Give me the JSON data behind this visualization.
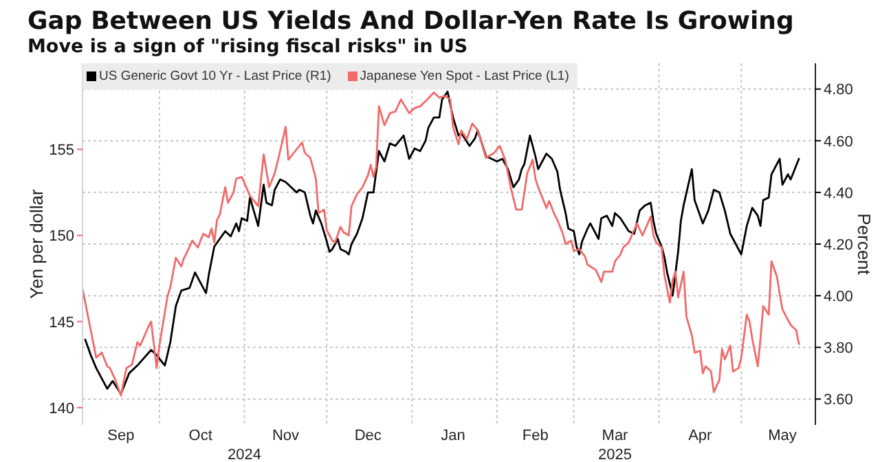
{
  "chart_data": {
    "type": "line",
    "title": "Gap Between US Yields And Dollar-Yen Rate Is Growing",
    "subtitle": "Move is a sign of \"rising fiscal risks\" in US",
    "ylabel": "Yen per dollar",
    "y2label": "Percent",
    "xlim": [
      "2024-09-03",
      "2025-05-28"
    ],
    "xticks": [
      {
        "value": "2024-09-17",
        "label": "Sep"
      },
      {
        "value": "2024-10-01",
        "label": null
      },
      {
        "value": "2024-10-16",
        "label": "Oct"
      },
      {
        "value": "2024-11-01",
        "label": null
      },
      {
        "value": "2024-11-16",
        "label": "Nov"
      },
      {
        "value": "2024-12-01",
        "label": null
      },
      {
        "value": "2024-12-16",
        "label": "Dec"
      },
      {
        "value": "2025-01-01",
        "label": null
      },
      {
        "value": "2025-01-16",
        "label": "Jan"
      },
      {
        "value": "2025-02-01",
        "label": null
      },
      {
        "value": "2025-02-15",
        "label": "Feb"
      },
      {
        "value": "2025-03-01",
        "label": null
      },
      {
        "value": "2025-03-16",
        "label": "Mar"
      },
      {
        "value": "2025-04-01",
        "label": null
      },
      {
        "value": "2025-04-16",
        "label": "Apr"
      },
      {
        "value": "2025-05-01",
        "label": null
      },
      {
        "value": "2025-05-16",
        "label": "May"
      }
    ],
    "x2lim": [
      "2024-09-03",
      "2025-05-28"
    ],
    "x2ticks": [
      {
        "value": "2024-11-01",
        "label": "2024"
      },
      {
        "value": "2025-03-16",
        "label": "2025"
      }
    ],
    "ylim": [
      139,
      160
    ],
    "yticks": [
      140,
      145,
      150,
      155
    ],
    "y2lim": [
      3.5,
      4.9
    ],
    "y2ticks": [
      {
        "value": 3.6,
        "label": "3.60"
      },
      {
        "value": 3.8,
        "label": "3.80"
      },
      {
        "value": 4.0,
        "label": "4.00"
      },
      {
        "value": 4.2,
        "label": "4.20"
      },
      {
        "value": 4.4,
        "label": "4.40"
      },
      {
        "value": 4.6,
        "label": "4.60"
      },
      {
        "value": 4.8,
        "label": "4.80"
      }
    ],
    "grid": true,
    "legend": "top left",
    "series": [
      {
        "name": "US Generic Govt 10 Yr - Last Price (R1)",
        "color": "#000000",
        "axis": "y2",
        "x": [
          "2024-09-04",
          "2024-09-06",
          "2024-09-08",
          "2024-09-12",
          "2024-09-14",
          "2024-09-17",
          "2024-09-20",
          "2024-09-23",
          "2024-09-28",
          "2024-09-30",
          "2024-10-03",
          "2024-10-05",
          "2024-10-07",
          "2024-10-09",
          "2024-10-12",
          "2024-10-14",
          "2024-10-18",
          "2024-10-19",
          "2024-10-21",
          "2024-10-25",
          "2024-10-27",
          "2024-10-29",
          "2024-10-30",
          "2024-10-31",
          "2024-11-02",
          "2024-11-03",
          "2024-11-06",
          "2024-11-08",
          "2024-11-09",
          "2024-11-11",
          "2024-11-12",
          "2024-11-14",
          "2024-11-16",
          "2024-11-18",
          "2024-11-20",
          "2024-11-21",
          "2024-11-23",
          "2024-11-25",
          "2024-11-26",
          "2024-11-27",
          "2024-11-29",
          "2024-12-01",
          "2024-12-02",
          "2024-12-03",
          "2024-12-05",
          "2024-12-06",
          "2024-12-08",
          "2024-12-09",
          "2024-12-10",
          "2024-12-12",
          "2024-12-14",
          "2024-12-16",
          "2024-12-18",
          "2024-12-20",
          "2024-12-22",
          "2024-12-24",
          "2024-12-26",
          "2024-12-29",
          "2024-12-31",
          "2025-01-02",
          "2025-01-04",
          "2025-01-06",
          "2025-01-07",
          "2025-01-09",
          "2025-01-11",
          "2025-01-12",
          "2025-01-14",
          "2025-01-16",
          "2025-01-18",
          "2025-01-19",
          "2025-01-22",
          "2025-01-24",
          "2025-01-25",
          "2025-01-28",
          "2025-02-01",
          "2025-02-03",
          "2025-02-05",
          "2025-02-07",
          "2025-02-09",
          "2025-02-10",
          "2025-02-11",
          "2025-02-13",
          "2025-02-15",
          "2025-02-16",
          "2025-02-19",
          "2025-02-21",
          "2025-02-23",
          "2025-02-24",
          "2025-02-26",
          "2025-02-27",
          "2025-03-01",
          "2025-03-02",
          "2025-03-03",
          "2025-03-04",
          "2025-03-06",
          "2025-03-07",
          "2025-03-10",
          "2025-03-11",
          "2025-03-13",
          "2025-03-15",
          "2025-03-16",
          "2025-03-18",
          "2025-03-21",
          "2025-03-23",
          "2025-03-25",
          "2025-03-27",
          "2025-03-29",
          "2025-03-30",
          "2025-03-31",
          "2025-04-02",
          "2025-04-03",
          "2025-04-04",
          "2025-04-06",
          "2025-04-08",
          "2025-04-09",
          "2025-04-10",
          "2025-04-13",
          "2025-04-14",
          "2025-04-17",
          "2025-04-19",
          "2025-04-21",
          "2025-04-23",
          "2025-04-25",
          "2025-04-27",
          "2025-04-29",
          "2025-05-01",
          "2025-05-03",
          "2025-05-05",
          "2025-05-07",
          "2025-05-08",
          "2025-05-09",
          "2025-05-11",
          "2025-05-12",
          "2025-05-15",
          "2025-05-16",
          "2025-05-18",
          "2025-05-19",
          "2025-05-22"
        ],
        "values": [
          3.83,
          3.77,
          3.72,
          3.64,
          3.67,
          3.62,
          3.7,
          3.73,
          3.79,
          3.77,
          3.73,
          3.82,
          3.96,
          4.02,
          4.03,
          4.09,
          4.01,
          4.08,
          4.19,
          4.25,
          4.23,
          4.28,
          4.25,
          4.3,
          4.29,
          4.38,
          4.27,
          4.43,
          4.36,
          4.35,
          4.41,
          4.45,
          4.44,
          4.42,
          4.4,
          4.41,
          4.4,
          4.31,
          4.28,
          4.33,
          4.28,
          4.21,
          4.17,
          4.18,
          4.22,
          4.18,
          4.17,
          4.16,
          4.2,
          4.24,
          4.3,
          4.4,
          4.4,
          4.56,
          4.52,
          4.59,
          4.58,
          4.62,
          4.53,
          4.57,
          4.56,
          4.6,
          4.65,
          4.69,
          4.69,
          4.76,
          4.79,
          4.69,
          4.62,
          4.63,
          4.58,
          4.61,
          4.64,
          4.54,
          4.52,
          4.53,
          4.49,
          4.42,
          4.45,
          4.49,
          4.51,
          4.62,
          4.54,
          4.49,
          4.55,
          4.53,
          4.48,
          4.41,
          4.32,
          4.26,
          4.25,
          4.19,
          4.16,
          4.21,
          4.26,
          4.28,
          4.22,
          4.3,
          4.31,
          4.27,
          4.32,
          4.3,
          4.25,
          4.24,
          4.33,
          4.35,
          4.36,
          4.29,
          4.24,
          4.19,
          4.15,
          4.09,
          4.0,
          4.17,
          4.29,
          4.35,
          4.49,
          4.37,
          4.28,
          4.33,
          4.41,
          4.4,
          4.33,
          4.24,
          4.2,
          4.16,
          4.27,
          4.34,
          4.31,
          4.27,
          4.37,
          4.38,
          4.47,
          4.53,
          4.43,
          4.47,
          4.45,
          4.53
        ]
      },
      {
        "name": "Japanese Yen Spot - Last Price (L1)",
        "color": "#f26a6a",
        "axis": "y",
        "x": [
          "2024-09-03",
          "2024-09-07",
          "2024-09-08",
          "2024-09-10",
          "2024-09-12",
          "2024-09-13",
          "2024-09-15",
          "2024-09-17",
          "2024-09-19",
          "2024-09-21",
          "2024-09-23",
          "2024-09-24",
          "2024-09-27",
          "2024-09-28",
          "2024-09-30",
          "2024-10-01",
          "2024-10-04",
          "2024-10-05",
          "2024-10-07",
          "2024-10-09",
          "2024-10-10",
          "2024-10-11",
          "2024-10-13",
          "2024-10-15",
          "2024-10-17",
          "2024-10-19",
          "2024-10-20",
          "2024-10-21",
          "2024-10-22",
          "2024-10-23",
          "2024-10-25",
          "2024-10-26",
          "2024-10-28",
          "2024-10-29",
          "2024-10-31",
          "2024-11-03",
          "2024-11-06",
          "2024-11-08",
          "2024-11-10",
          "2024-11-12",
          "2024-11-14",
          "2024-11-16",
          "2024-11-17",
          "2024-11-19",
          "2024-11-22",
          "2024-11-23",
          "2024-11-25",
          "2024-11-27",
          "2024-11-28",
          "2024-11-30",
          "2024-12-01",
          "2024-12-03",
          "2024-12-04",
          "2024-12-06",
          "2024-12-07",
          "2024-12-09",
          "2024-12-10",
          "2024-12-12",
          "2024-12-14",
          "2024-12-16",
          "2024-12-17",
          "2024-12-18",
          "2024-12-19",
          "2024-12-20",
          "2024-12-22",
          "2024-12-24",
          "2024-12-26",
          "2024-12-28",
          "2024-12-31",
          "2025-01-02",
          "2025-01-04",
          "2025-01-06",
          "2025-01-09",
          "2025-01-11",
          "2025-01-13",
          "2025-01-15",
          "2025-01-16",
          "2025-01-18",
          "2025-01-19",
          "2025-01-21",
          "2025-01-23",
          "2025-01-25",
          "2025-01-28",
          "2025-01-31",
          "2025-02-02",
          "2025-02-04",
          "2025-02-06",
          "2025-02-08",
          "2025-02-10",
          "2025-02-11",
          "2025-02-12",
          "2025-02-14",
          "2025-02-15",
          "2025-02-16",
          "2025-02-18",
          "2025-02-19",
          "2025-02-20",
          "2025-02-22",
          "2025-02-23",
          "2025-02-25",
          "2025-02-26",
          "2025-02-28",
          "2025-03-01",
          "2025-03-03",
          "2025-03-05",
          "2025-03-06",
          "2025-03-08",
          "2025-03-09",
          "2025-03-11",
          "2025-03-12",
          "2025-03-15",
          "2025-03-16",
          "2025-03-18",
          "2025-03-19",
          "2025-03-21",
          "2025-03-24",
          "2025-03-26",
          "2025-03-29",
          "2025-03-30",
          "2025-03-31",
          "2025-04-02",
          "2025-04-03",
          "2025-04-05",
          "2025-04-06",
          "2025-04-07",
          "2025-04-08",
          "2025-04-10",
          "2025-04-11",
          "2025-04-13",
          "2025-04-14",
          "2025-04-16",
          "2025-04-17",
          "2025-04-18",
          "2025-04-20",
          "2025-04-21",
          "2025-04-23",
          "2025-04-24",
          "2025-04-25",
          "2025-04-27",
          "2025-04-28",
          "2025-04-30",
          "2025-05-01",
          "2025-05-03",
          "2025-05-04",
          "2025-05-05",
          "2025-05-07",
          "2025-05-08",
          "2025-05-09",
          "2025-05-11",
          "2025-05-12",
          "2025-05-14",
          "2025-05-15",
          "2025-05-16",
          "2025-05-19",
          "2025-05-21",
          "2025-05-22"
        ],
        "values": [
          146.9,
          143.7,
          142.9,
          143.2,
          142.4,
          142.3,
          141.6,
          140.7,
          142.3,
          142.5,
          143.8,
          143.6,
          144.7,
          145.0,
          142.3,
          143.6,
          146.5,
          147.0,
          148.7,
          148.2,
          148.7,
          149.0,
          149.7,
          149.3,
          150.1,
          149.9,
          150.4,
          149.6,
          150.9,
          151.2,
          152.8,
          151.9,
          152.5,
          153.3,
          153.4,
          152.3,
          151.7,
          154.7,
          152.8,
          153.6,
          154.9,
          156.3,
          154.4,
          154.8,
          155.4,
          154.8,
          154.5,
          153.3,
          151.3,
          151.5,
          150.3,
          149.7,
          149.6,
          150.5,
          150.2,
          150.0,
          151.7,
          152.4,
          152.8,
          153.5,
          154.1,
          153.4,
          154.0,
          157.5,
          156.4,
          157.1,
          157.2,
          157.9,
          157.1,
          157.4,
          157.5,
          157.8,
          158.3,
          158.0,
          158.1,
          157.9,
          156.3,
          155.3,
          156.1,
          155.6,
          156.5,
          156.1,
          154.5,
          154.8,
          155.2,
          154.4,
          152.8,
          151.5,
          151.5,
          152.5,
          153.6,
          154.4,
          153.3,
          152.8,
          152.0,
          151.6,
          152.0,
          151.2,
          150.9,
          150.1,
          149.5,
          149.7,
          149.1,
          149.2,
          148.8,
          148.3,
          148.1,
          148.0,
          147.3,
          147.9,
          147.9,
          148.5,
          148.9,
          149.3,
          149.6,
          150.7,
          150.0,
          151.1,
          150.0,
          149.6,
          149.3,
          147.7,
          146.1,
          147.4,
          147.9,
          146.4,
          147.9,
          145.3,
          144.2,
          143.2,
          143.3,
          142.0,
          142.4,
          142.1,
          140.9,
          141.6,
          143.4,
          142.8,
          143.6,
          142.1,
          142.3,
          142.9,
          145.4,
          145.0,
          144.0,
          142.4,
          144.0,
          145.9,
          145.4,
          148.5,
          147.6,
          146.6,
          145.7,
          144.8,
          144.5,
          143.7
        ]
      }
    ]
  }
}
